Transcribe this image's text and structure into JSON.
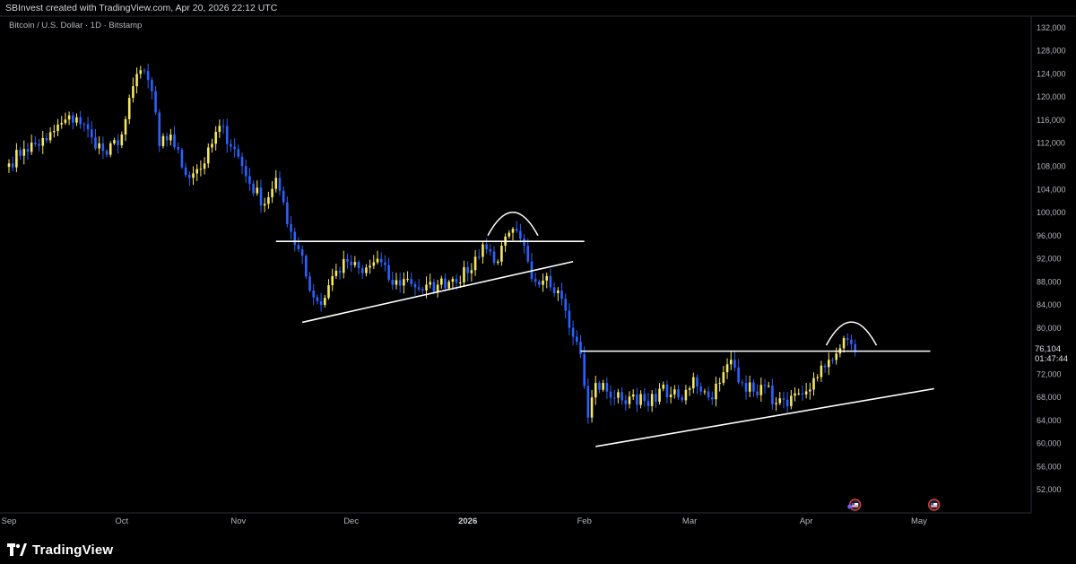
{
  "header": {
    "creator_text": "SBInvest created with TradingView.com, Apr 20, 2026 22:12 UTC",
    "symbol_text": "Bitcoin / U.S. Dollar · 1D · Bitstamp"
  },
  "footer": {
    "brand": "TradingView"
  },
  "colors": {
    "up": "#f5e663",
    "down": "#2962ff",
    "background": "#000000",
    "drawing": "#ffffff"
  },
  "chart_data": {
    "type": "candlestick",
    "title": "Bitcoin / U.S. Dollar · 1D · Bitstamp",
    "ylim": [
      48000,
      134000
    ],
    "y_ticks": [
      "52,000",
      "56,000",
      "60,000",
      "64,000",
      "68,000",
      "72,000",
      "76,000",
      "80,000",
      "84,000",
      "88,000",
      "92,000",
      "96,000",
      "100,000",
      "104,000",
      "108,000",
      "112,000",
      "116,000",
      "120,000",
      "124,000",
      "128,000",
      "132,000"
    ],
    "x_ticks": [
      {
        "label": "Sep",
        "day": 0
      },
      {
        "label": "Oct",
        "day": 30
      },
      {
        "label": "Nov",
        "day": 61
      },
      {
        "label": "Dec",
        "day": 91
      },
      {
        "label": "2026",
        "day": 122,
        "bold": true
      },
      {
        "label": "Feb",
        "day": 153
      },
      {
        "label": "Mar",
        "day": 181
      },
      {
        "label": "Apr",
        "day": 212
      },
      {
        "label": "May",
        "day": 242
      }
    ],
    "last_price": "76,104",
    "countdown": "01:47:44",
    "anchor_closes": [
      [
        0,
        108500
      ],
      [
        4,
        111000
      ],
      [
        10,
        112500
      ],
      [
        14,
        115500
      ],
      [
        18,
        116500
      ],
      [
        22,
        113000
      ],
      [
        26,
        110000
      ],
      [
        30,
        113500
      ],
      [
        34,
        124000
      ],
      [
        36,
        124500
      ],
      [
        38,
        121000
      ],
      [
        40,
        111500
      ],
      [
        43,
        113500
      ],
      [
        47,
        106500
      ],
      [
        52,
        108500
      ],
      [
        56,
        115000
      ],
      [
        60,
        111000
      ],
      [
        64,
        105000
      ],
      [
        68,
        101500
      ],
      [
        71,
        106000
      ],
      [
        74,
        98000
      ],
      [
        78,
        92500
      ],
      [
        80,
        86500
      ],
      [
        83,
        84000
      ],
      [
        86,
        89000
      ],
      [
        90,
        91500
      ],
      [
        94,
        89500
      ],
      [
        98,
        92000
      ],
      [
        102,
        87500
      ],
      [
        106,
        88500
      ],
      [
        110,
        86500
      ],
      [
        114,
        87500
      ],
      [
        118,
        88500
      ],
      [
        122,
        89500
      ],
      [
        126,
        94500
      ],
      [
        130,
        91500
      ],
      [
        133,
        96500
      ],
      [
        136,
        95500
      ],
      [
        139,
        88500
      ],
      [
        143,
        89000
      ],
      [
        146,
        86500
      ],
      [
        148,
        83000
      ],
      [
        150,
        78500
      ],
      [
        152,
        75500
      ],
      [
        154,
        64500
      ],
      [
        156,
        70500
      ],
      [
        159,
        69000
      ],
      [
        163,
        67500
      ],
      [
        166,
        68500
      ],
      [
        170,
        66500
      ],
      [
        173,
        69500
      ],
      [
        176,
        68500
      ],
      [
        179,
        67500
      ],
      [
        182,
        71500
      ],
      [
        186,
        68000
      ],
      [
        189,
        70500
      ],
      [
        192,
        74500
      ],
      [
        195,
        70500
      ],
      [
        198,
        69000
      ],
      [
        201,
        70000
      ],
      [
        204,
        67000
      ],
      [
        207,
        66500
      ],
      [
        211,
        68500
      ],
      [
        215,
        71500
      ],
      [
        218,
        74500
      ],
      [
        221,
        76500
      ],
      [
        223,
        78000
      ],
      [
        225,
        76104
      ]
    ],
    "drawings": [
      {
        "type": "horizontal",
        "price": 95000,
        "from_day": 71,
        "to_day": 153,
        "label": "resistance"
      },
      {
        "type": "trendline",
        "from": [
          78,
          81000
        ],
        "to": [
          150,
          91500
        ],
        "label": "support"
      },
      {
        "type": "arc",
        "center_day": 134,
        "price": 96000,
        "label": "rejection-dome"
      },
      {
        "type": "horizontal",
        "price": 76000,
        "from_day": 152,
        "to_day": 245,
        "label": "resistance"
      },
      {
        "type": "trendline",
        "from": [
          156,
          59500
        ],
        "to": [
          246,
          69500
        ],
        "label": "support"
      },
      {
        "type": "arc",
        "center_day": 224,
        "price": 77000,
        "label": "rejection-dome"
      }
    ],
    "markers": [
      {
        "day": 225,
        "label": "event-flag"
      },
      {
        "day": 246,
        "label": "event-flag"
      }
    ],
    "grid": false,
    "legend": "none"
  }
}
